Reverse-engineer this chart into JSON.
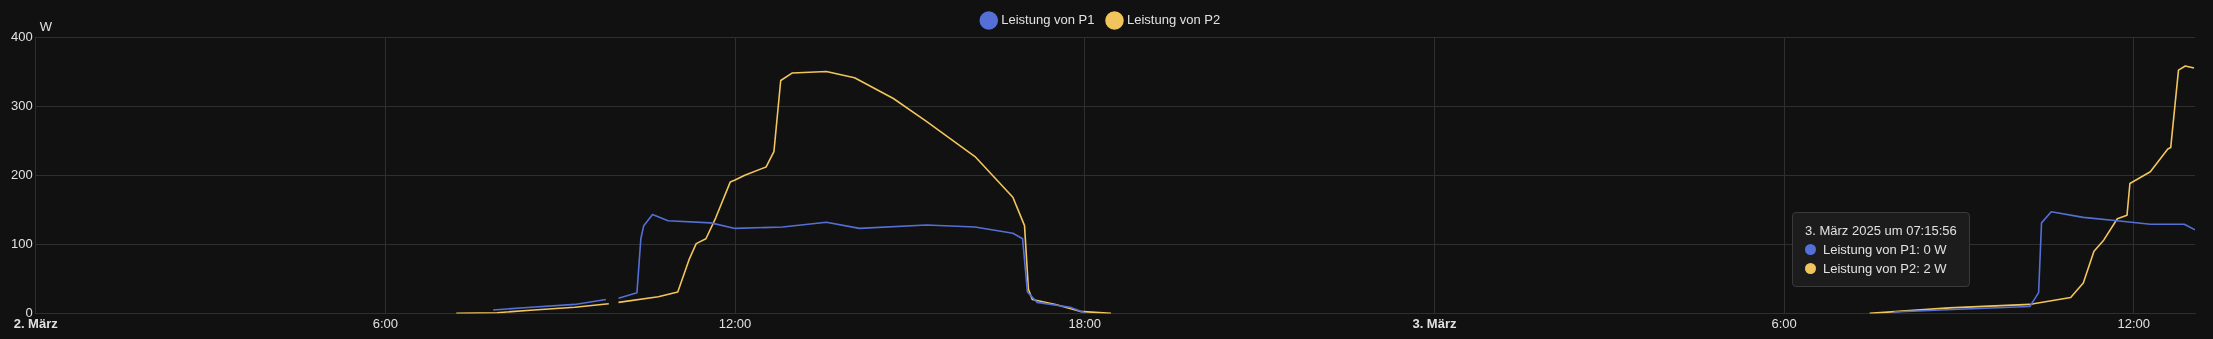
{
  "chart_data": {
    "type": "line",
    "ylabel": "W",
    "legend": "top",
    "grid": true,
    "marker": "none",
    "line_style": "solid",
    "xlim": [
      "2025-03-02T00:00",
      "2025-03-03T13:03"
    ],
    "xticks": [
      {
        "value": "2025-03-02T00:00",
        "label": "2. März"
      },
      {
        "value": "2025-03-02T06:00",
        "label": "6:00"
      },
      {
        "value": "2025-03-02T12:00",
        "label": "12:00"
      },
      {
        "value": "2025-03-02T18:00",
        "label": "18:00"
      },
      {
        "value": "2025-03-03T00:00",
        "label": "3. März"
      },
      {
        "value": "2025-03-03T06:00",
        "label": "6:00"
      },
      {
        "value": "2025-03-03T12:00",
        "label": "12:00"
      }
    ],
    "ylim": [
      0,
      400
    ],
    "yticks": [
      0,
      100,
      200,
      300,
      400
    ],
    "annotations": [
      "3. März 2025 um 07:15:56",
      "Leistung von P1: 0 W",
      "Leistung von P2: 2 W"
    ],
    "series": [
      {
        "name": "Leistung von P1",
        "color": "#5470d6",
        "x": [
          "2025-03-02T07:51",
          "2025-03-02T08:30",
          "2025-03-02T09:15",
          "2025-03-02T09:47",
          "2025-03-02T09:48",
          "2025-03-02T10:00",
          "2025-03-02T10:19",
          "2025-03-02T10:23",
          "2025-03-02T10:26",
          "2025-03-02T10:35",
          "2025-03-02T10:51",
          "2025-03-02T11:35",
          "2025-03-02T12:00",
          "2025-03-02T12:49",
          "2025-03-02T13:34",
          "2025-03-02T14:08",
          "2025-03-02T15:17",
          "2025-03-02T16:07",
          "2025-03-02T16:46",
          "2025-03-02T16:56",
          "2025-03-02T17:01",
          "2025-03-02T17:11",
          "2025-03-02T17:45",
          "2025-03-02T18:00",
          "2025-03-02T18:01",
          "2025-03-03T07:53",
          "2025-03-03T09:00",
          "2025-03-03T10:13",
          "2025-03-03T10:22",
          "2025-03-03T10:25",
          "2025-03-03T10:35",
          "2025-03-03T11:08",
          "2025-03-03T11:43",
          "2025-03-03T12:17",
          "2025-03-03T12:52",
          "2025-03-03T13:03"
        ],
        "values": [
          5,
          9,
          13,
          20,
          null,
          22,
          30,
          108,
          127,
          143,
          134,
          131,
          123,
          125,
          132,
          123,
          128,
          125,
          116,
          108,
          31,
          16,
          9,
          1,
          null,
          2,
          6,
          10,
          30,
          131,
          147,
          139,
          134,
          129,
          129,
          121
        ]
      },
      {
        "name": "Leistung von P2",
        "color": "#f2c55c",
        "x": [
          "2025-03-02T07:13",
          "2025-03-02T07:55",
          "2025-03-02T08:33",
          "2025-03-02T09:15",
          "2025-03-02T09:50",
          "2025-03-02T09:55",
          "2025-03-02T10:00",
          "2025-03-02T10:41",
          "2025-03-02T11:01",
          "2025-03-02T11:13",
          "2025-03-02T11:20",
          "2025-03-02T11:30",
          "2025-03-02T11:40",
          "2025-03-02T11:55",
          "2025-03-02T12:00",
          "2025-03-02T12:10",
          "2025-03-02T12:32",
          "2025-03-02T12:40",
          "2025-03-02T12:47",
          "2025-03-02T12:59",
          "2025-03-02T13:34",
          "2025-03-02T14:03",
          "2025-03-02T14:43",
          "2025-03-02T15:17",
          "2025-03-02T16:07",
          "2025-03-02T16:46",
          "2025-03-02T16:58",
          "2025-03-02T17:02",
          "2025-03-02T17:06",
          "2025-03-02T17:30",
          "2025-03-02T17:55",
          "2025-03-02T18:27",
          "2025-03-02T18:28",
          "2025-03-03T07:28",
          "2025-03-03T08:50",
          "2025-03-03T10:13",
          "2025-03-03T10:55",
          "2025-03-03T11:08",
          "2025-03-03T11:19",
          "2025-03-03T11:29",
          "2025-03-03T11:43",
          "2025-03-03T11:53",
          "2025-03-03T11:56",
          "2025-03-03T12:17",
          "2025-03-03T12:35",
          "2025-03-03T12:38",
          "2025-03-03T12:46",
          "2025-03-03T12:53",
          "2025-03-03T13:02"
        ],
        "values": [
          0,
          1,
          5,
          9,
          14,
          null,
          16,
          24,
          31,
          79,
          101,
          108,
          138,
          190,
          193,
          200,
          212,
          234,
          337,
          348,
          350,
          341,
          311,
          278,
          227,
          168,
          127,
          35,
          20,
          13,
          3,
          0,
          null,
          0,
          8,
          13,
          23,
          44,
          90,
          106,
          137,
          142,
          188,
          205,
          238,
          240,
          352,
          358,
          355
        ]
      }
    ]
  }
}
